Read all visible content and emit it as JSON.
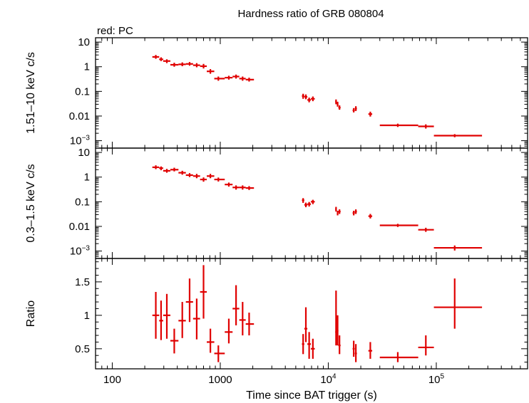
{
  "chart_data": {
    "type": "scatter",
    "title": "Hardness ratio of GRB 080804",
    "legend_text": "red: PC",
    "xlabel": "Time since BAT trigger (s)",
    "xscale": "log",
    "xlim": [
      70,
      700000
    ],
    "xticks": [
      {
        "value": 100,
        "label": "100"
      },
      {
        "value": 1000,
        "label": "1000"
      },
      {
        "value": 10000,
        "label": "10",
        "exp": "4"
      },
      {
        "value": 100000,
        "label": "10",
        "exp": "5"
      }
    ],
    "color": "#e00000",
    "panels": [
      {
        "id": "hard",
        "ylabel": "1.51–10 keV c/s",
        "yscale": "log",
        "ylim": [
          0.0005,
          15
        ],
        "yticks": [
          {
            "value": 10,
            "label": "10"
          },
          {
            "value": 1,
            "label": "1"
          },
          {
            "value": 0.1,
            "label": "0.1"
          },
          {
            "value": 0.01,
            "label": "0.01"
          },
          {
            "value": 0.001,
            "label": "10",
            "exp": "−3"
          }
        ],
        "points": [
          {
            "x": 253,
            "xlo": 235,
            "xhi": 272,
            "y": 2.5,
            "ylo": 2.1,
            "yhi": 3.0
          },
          {
            "x": 283,
            "xlo": 272,
            "xhi": 296,
            "y": 2.0,
            "ylo": 1.7,
            "yhi": 2.4
          },
          {
            "x": 320,
            "xlo": 296,
            "xhi": 345,
            "y": 1.7,
            "ylo": 1.4,
            "yhi": 2.0
          },
          {
            "x": 375,
            "xlo": 345,
            "xhi": 410,
            "y": 1.2,
            "ylo": 1.0,
            "yhi": 1.45
          },
          {
            "x": 445,
            "xlo": 410,
            "xhi": 480,
            "y": 1.25,
            "ylo": 1.05,
            "yhi": 1.5
          },
          {
            "x": 520,
            "xlo": 480,
            "xhi": 560,
            "y": 1.3,
            "ylo": 1.1,
            "yhi": 1.55
          },
          {
            "x": 605,
            "xlo": 560,
            "xhi": 650,
            "y": 1.15,
            "ylo": 0.95,
            "yhi": 1.4
          },
          {
            "x": 700,
            "xlo": 650,
            "xhi": 750,
            "y": 1.05,
            "ylo": 0.85,
            "yhi": 1.3
          },
          {
            "x": 810,
            "xlo": 750,
            "xhi": 880,
            "y": 0.65,
            "ylo": 0.52,
            "yhi": 0.8
          },
          {
            "x": 960,
            "xlo": 880,
            "xhi": 1100,
            "y": 0.33,
            "ylo": 0.27,
            "yhi": 0.4
          },
          {
            "x": 1200,
            "xlo": 1100,
            "xhi": 1300,
            "y": 0.36,
            "ylo": 0.3,
            "yhi": 0.43
          },
          {
            "x": 1400,
            "xlo": 1300,
            "xhi": 1500,
            "y": 0.4,
            "ylo": 0.33,
            "yhi": 0.48
          },
          {
            "x": 1610,
            "xlo": 1500,
            "xhi": 1720,
            "y": 0.33,
            "ylo": 0.27,
            "yhi": 0.4
          },
          {
            "x": 1850,
            "xlo": 1720,
            "xhi": 2050,
            "y": 0.3,
            "ylo": 0.25,
            "yhi": 0.36
          },
          {
            "x": 5850,
            "xlo": 5700,
            "xhi": 6000,
            "y": 0.065,
            "ylo": 0.05,
            "yhi": 0.08
          },
          {
            "x": 6200,
            "xlo": 6000,
            "xhi": 6400,
            "y": 0.06,
            "ylo": 0.048,
            "yhi": 0.075
          },
          {
            "x": 6650,
            "xlo": 6400,
            "xhi": 6900,
            "y": 0.045,
            "ylo": 0.036,
            "yhi": 0.056
          },
          {
            "x": 7200,
            "xlo": 6900,
            "xhi": 7500,
            "y": 0.05,
            "ylo": 0.04,
            "yhi": 0.062
          },
          {
            "x": 11800,
            "xlo": 11600,
            "xhi": 12000,
            "y": 0.038,
            "ylo": 0.03,
            "yhi": 0.047
          },
          {
            "x": 12200,
            "xlo": 12000,
            "xhi": 12400,
            "y": 0.03,
            "ylo": 0.024,
            "yhi": 0.038
          },
          {
            "x": 12700,
            "xlo": 12400,
            "xhi": 13000,
            "y": 0.022,
            "ylo": 0.018,
            "yhi": 0.027
          },
          {
            "x": 17200,
            "xlo": 16800,
            "xhi": 17600,
            "y": 0.017,
            "ylo": 0.014,
            "yhi": 0.021
          },
          {
            "x": 18000,
            "xlo": 17600,
            "xhi": 18400,
            "y": 0.02,
            "ylo": 0.016,
            "yhi": 0.025
          },
          {
            "x": 24500,
            "xlo": 23500,
            "xhi": 25500,
            "y": 0.012,
            "ylo": 0.0095,
            "yhi": 0.015
          },
          {
            "x": 44000,
            "xlo": 30000,
            "xhi": 68000,
            "y": 0.0042,
            "ylo": 0.0036,
            "yhi": 0.0049
          },
          {
            "x": 80000,
            "xlo": 68000,
            "xhi": 95000,
            "y": 0.0038,
            "ylo": 0.0031,
            "yhi": 0.0046
          },
          {
            "x": 148000,
            "xlo": 95000,
            "xhi": 265000,
            "y": 0.0016,
            "ylo": 0.00138,
            "yhi": 0.00184
          }
        ]
      },
      {
        "id": "soft",
        "ylabel": "0.3–1.5 keV c/s",
        "yscale": "log",
        "ylim": [
          0.0005,
          15
        ],
        "yticks": [
          {
            "value": 10,
            "label": "10"
          },
          {
            "value": 1,
            "label": "1"
          },
          {
            "value": 0.1,
            "label": "0.1"
          },
          {
            "value": 0.01,
            "label": "0.01"
          },
          {
            "value": 0.001,
            "label": "10",
            "exp": "−3"
          }
        ],
        "points": [
          {
            "x": 253,
            "xlo": 235,
            "xhi": 272,
            "y": 2.5,
            "ylo": 2.1,
            "yhi": 3.0
          },
          {
            "x": 283,
            "xlo": 272,
            "xhi": 296,
            "y": 2.3,
            "ylo": 1.9,
            "yhi": 2.7
          },
          {
            "x": 320,
            "xlo": 296,
            "xhi": 345,
            "y": 1.8,
            "ylo": 1.5,
            "yhi": 2.15
          },
          {
            "x": 375,
            "xlo": 345,
            "xhi": 410,
            "y": 2.0,
            "ylo": 1.7,
            "yhi": 2.4
          },
          {
            "x": 445,
            "xlo": 410,
            "xhi": 480,
            "y": 1.5,
            "ylo": 1.25,
            "yhi": 1.8
          },
          {
            "x": 520,
            "xlo": 480,
            "xhi": 560,
            "y": 1.2,
            "ylo": 1.0,
            "yhi": 1.45
          },
          {
            "x": 605,
            "xlo": 560,
            "xhi": 650,
            "y": 1.1,
            "ylo": 0.9,
            "yhi": 1.35
          },
          {
            "x": 700,
            "xlo": 650,
            "xhi": 750,
            "y": 0.8,
            "ylo": 0.65,
            "yhi": 0.97
          },
          {
            "x": 810,
            "xlo": 750,
            "xhi": 880,
            "y": 1.1,
            "ylo": 0.9,
            "yhi": 1.35
          },
          {
            "x": 960,
            "xlo": 880,
            "xhi": 1100,
            "y": 0.8,
            "ylo": 0.66,
            "yhi": 0.96
          },
          {
            "x": 1200,
            "xlo": 1100,
            "xhi": 1300,
            "y": 0.5,
            "ylo": 0.41,
            "yhi": 0.6
          },
          {
            "x": 1400,
            "xlo": 1300,
            "xhi": 1500,
            "y": 0.38,
            "ylo": 0.31,
            "yhi": 0.46
          },
          {
            "x": 1610,
            "xlo": 1500,
            "xhi": 1720,
            "y": 0.38,
            "ylo": 0.31,
            "yhi": 0.46
          },
          {
            "x": 1850,
            "xlo": 1720,
            "xhi": 2050,
            "y": 0.36,
            "ylo": 0.3,
            "yhi": 0.43
          },
          {
            "x": 5850,
            "xlo": 5700,
            "xhi": 6000,
            "y": 0.115,
            "ylo": 0.09,
            "yhi": 0.14
          },
          {
            "x": 6200,
            "xlo": 6000,
            "xhi": 6400,
            "y": 0.075,
            "ylo": 0.06,
            "yhi": 0.092
          },
          {
            "x": 6650,
            "xlo": 6400,
            "xhi": 6900,
            "y": 0.08,
            "ylo": 0.064,
            "yhi": 0.098
          },
          {
            "x": 7200,
            "xlo": 6900,
            "xhi": 7500,
            "y": 0.1,
            "ylo": 0.08,
            "yhi": 0.12
          },
          {
            "x": 11800,
            "xlo": 11600,
            "xhi": 12000,
            "y": 0.05,
            "ylo": 0.04,
            "yhi": 0.062
          },
          {
            "x": 12200,
            "xlo": 12000,
            "xhi": 12400,
            "y": 0.035,
            "ylo": 0.028,
            "yhi": 0.043
          },
          {
            "x": 12700,
            "xlo": 12400,
            "xhi": 13000,
            "y": 0.04,
            "ylo": 0.032,
            "yhi": 0.049
          },
          {
            "x": 17200,
            "xlo": 16800,
            "xhi": 17600,
            "y": 0.035,
            "ylo": 0.028,
            "yhi": 0.043
          },
          {
            "x": 18000,
            "xlo": 17600,
            "xhi": 18400,
            "y": 0.04,
            "ylo": 0.032,
            "yhi": 0.049
          },
          {
            "x": 24500,
            "xlo": 23500,
            "xhi": 25500,
            "y": 0.026,
            "ylo": 0.021,
            "yhi": 0.032
          },
          {
            "x": 44000,
            "xlo": 30000,
            "xhi": 68000,
            "y": 0.011,
            "ylo": 0.0095,
            "yhi": 0.0127
          },
          {
            "x": 80000,
            "xlo": 68000,
            "xhi": 95000,
            "y": 0.0073,
            "ylo": 0.006,
            "yhi": 0.0088
          },
          {
            "x": 148000,
            "xlo": 95000,
            "xhi": 265000,
            "y": 0.00135,
            "ylo": 0.00105,
            "yhi": 0.00168
          }
        ]
      },
      {
        "id": "ratio",
        "ylabel": "Ratio",
        "yscale": "linear",
        "ylim": [
          0.2,
          1.85
        ],
        "yticks": [
          {
            "value": 0.5,
            "label": "0.5"
          },
          {
            "value": 1,
            "label": "1"
          },
          {
            "value": 1.5,
            "label": "1.5"
          }
        ],
        "yminor": [
          0.3,
          0.4,
          0.6,
          0.7,
          0.8,
          0.9,
          1.1,
          1.2,
          1.3,
          1.4,
          1.6,
          1.7,
          1.8
        ],
        "points": [
          {
            "x": 253,
            "xlo": 235,
            "xhi": 272,
            "y": 1.0,
            "ylo": 0.65,
            "yhi": 1.35
          },
          {
            "x": 283,
            "xlo": 272,
            "xhi": 296,
            "y": 0.92,
            "ylo": 0.63,
            "yhi": 1.22
          },
          {
            "x": 320,
            "xlo": 296,
            "xhi": 345,
            "y": 1.0,
            "ylo": 0.65,
            "yhi": 1.32
          },
          {
            "x": 375,
            "xlo": 345,
            "xhi": 410,
            "y": 0.62,
            "ylo": 0.43,
            "yhi": 0.8
          },
          {
            "x": 445,
            "xlo": 410,
            "xhi": 480,
            "y": 0.92,
            "ylo": 0.66,
            "yhi": 1.2
          },
          {
            "x": 520,
            "xlo": 480,
            "xhi": 560,
            "y": 1.2,
            "ylo": 0.9,
            "yhi": 1.55
          },
          {
            "x": 605,
            "xlo": 560,
            "xhi": 650,
            "y": 0.95,
            "ylo": 0.64,
            "yhi": 1.25
          },
          {
            "x": 700,
            "xlo": 650,
            "xhi": 750,
            "y": 1.35,
            "ylo": 0.95,
            "yhi": 1.75
          },
          {
            "x": 810,
            "xlo": 750,
            "xhi": 880,
            "y": 0.6,
            "ylo": 0.44,
            "yhi": 0.8
          },
          {
            "x": 960,
            "xlo": 880,
            "xhi": 1100,
            "y": 0.43,
            "ylo": 0.3,
            "yhi": 0.55
          },
          {
            "x": 1200,
            "xlo": 1100,
            "xhi": 1300,
            "y": 0.75,
            "ylo": 0.58,
            "yhi": 0.95
          },
          {
            "x": 1400,
            "xlo": 1300,
            "xhi": 1500,
            "y": 1.1,
            "ylo": 0.85,
            "yhi": 1.45
          },
          {
            "x": 1610,
            "xlo": 1500,
            "xhi": 1720,
            "y": 0.93,
            "ylo": 0.7,
            "yhi": 1.2
          },
          {
            "x": 1850,
            "xlo": 1720,
            "xhi": 2050,
            "y": 0.87,
            "ylo": 0.7,
            "yhi": 1.04
          },
          {
            "x": 5850,
            "xlo": 5700,
            "xhi": 6000,
            "y": 0.57,
            "ylo": 0.42,
            "yhi": 0.72
          },
          {
            "x": 6200,
            "xlo": 6000,
            "xhi": 6400,
            "y": 0.8,
            "ylo": 0.6,
            "yhi": 1.12
          },
          {
            "x": 6650,
            "xlo": 6400,
            "xhi": 6900,
            "y": 0.57,
            "ylo": 0.35,
            "yhi": 0.75
          },
          {
            "x": 7200,
            "xlo": 6900,
            "xhi": 7500,
            "y": 0.5,
            "ylo": 0.35,
            "yhi": 0.65
          },
          {
            "x": 11800,
            "xlo": 11600,
            "xhi": 12000,
            "y": 0.75,
            "ylo": 0.55,
            "yhi": 1.37
          },
          {
            "x": 12200,
            "xlo": 12000,
            "xhi": 12400,
            "y": 0.77,
            "ylo": 0.55,
            "yhi": 1.0
          },
          {
            "x": 12700,
            "xlo": 12400,
            "xhi": 13000,
            "y": 0.55,
            "ylo": 0.42,
            "yhi": 0.7
          },
          {
            "x": 17200,
            "xlo": 16800,
            "xhi": 17600,
            "y": 0.5,
            "ylo": 0.38,
            "yhi": 0.62
          },
          {
            "x": 18000,
            "xlo": 17600,
            "xhi": 18400,
            "y": 0.43,
            "ylo": 0.3,
            "yhi": 0.57
          },
          {
            "x": 24500,
            "xlo": 23500,
            "xhi": 25500,
            "y": 0.47,
            "ylo": 0.35,
            "yhi": 0.6
          },
          {
            "x": 44000,
            "xlo": 30000,
            "xhi": 68000,
            "y": 0.37,
            "ylo": 0.3,
            "yhi": 0.45
          },
          {
            "x": 80000,
            "xlo": 68000,
            "xhi": 95000,
            "y": 0.52,
            "ylo": 0.4,
            "yhi": 0.7
          },
          {
            "x": 148000,
            "xlo": 95000,
            "xhi": 265000,
            "y": 1.12,
            "ylo": 0.8,
            "yhi": 1.55
          }
        ]
      }
    ]
  }
}
